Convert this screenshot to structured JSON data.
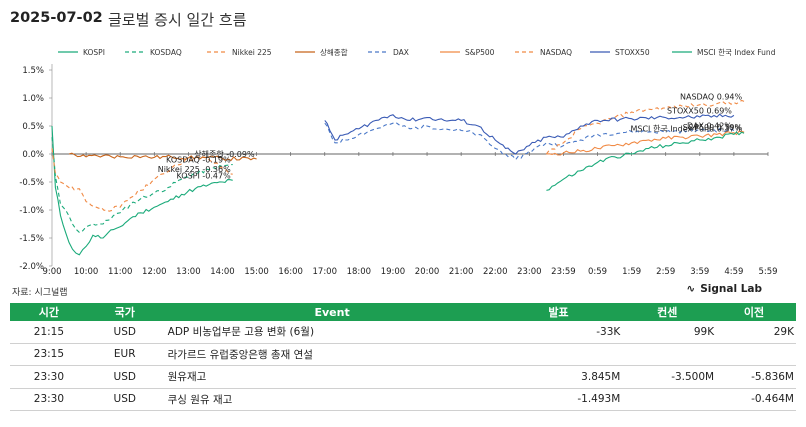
{
  "header": {
    "date": "2025-07-02",
    "title": "글로벌 증시 일간 흐름"
  },
  "source_label": "자료: 시그널랩",
  "brand": "Signal Lab",
  "chart_data": {
    "type": "line",
    "y_unit": "%",
    "ylim": [
      -2.0,
      1.5
    ],
    "y_ticks": [
      "1.5%",
      "1.0%",
      "0.5%",
      "0.0%",
      "-0.5%",
      "-1.0%",
      "-1.5%",
      "-2.0%"
    ],
    "y_tick_values": [
      1.5,
      1.0,
      0.5,
      0.0,
      -0.5,
      -1.0,
      -1.5,
      -2.0
    ],
    "x_ticks": [
      "9:00",
      "10:00",
      "11:00",
      "12:00",
      "13:00",
      "14:00",
      "15:00",
      "16:00",
      "17:00",
      "18:00",
      "19:00",
      "20:00",
      "21:00",
      "22:00",
      "23:00",
      "23:59",
      "0:59",
      "1:59",
      "2:59",
      "3:59",
      "4:59",
      "5:59"
    ],
    "legend_position": "top",
    "series": [
      {
        "name": "KOSPI",
        "color": "#1aaa7a",
        "dash": "solid",
        "points": [
          [
            0,
            0.5
          ],
          [
            0.1,
            -0.6
          ],
          [
            0.25,
            -1.1
          ],
          [
            0.4,
            -1.4
          ],
          [
            0.6,
            -1.7
          ],
          [
            0.8,
            -1.8
          ],
          [
            1.0,
            -1.65
          ],
          [
            1.2,
            -1.45
          ],
          [
            1.5,
            -1.5
          ],
          [
            1.8,
            -1.35
          ],
          [
            2.0,
            -1.3
          ],
          [
            2.3,
            -1.15
          ],
          [
            2.6,
            -1.05
          ],
          [
            3.0,
            -0.95
          ],
          [
            3.4,
            -0.85
          ],
          [
            3.8,
            -0.72
          ],
          [
            4.2,
            -0.62
          ],
          [
            4.6,
            -0.55
          ],
          [
            5.0,
            -0.5
          ],
          [
            5.3,
            -0.47
          ]
        ],
        "label": "KOSPI -0.47%"
      },
      {
        "name": "KOSDAQ",
        "color": "#1aaa7a",
        "dash": "dashed",
        "points": [
          [
            0,
            0.3
          ],
          [
            0.1,
            -0.4
          ],
          [
            0.25,
            -0.9
          ],
          [
            0.4,
            -1.0
          ],
          [
            0.6,
            -1.25
          ],
          [
            0.8,
            -1.4
          ],
          [
            1.0,
            -1.3
          ],
          [
            1.2,
            -1.25
          ],
          [
            1.5,
            -1.25
          ],
          [
            1.8,
            -1.1
          ],
          [
            2.0,
            -1.05
          ],
          [
            2.3,
            -0.9
          ],
          [
            2.6,
            -0.8
          ],
          [
            3.0,
            -0.7
          ],
          [
            3.4,
            -0.6
          ],
          [
            3.8,
            -0.45
          ],
          [
            4.2,
            -0.35
          ],
          [
            4.6,
            -0.28
          ],
          [
            5.0,
            -0.22
          ],
          [
            5.3,
            -0.19
          ]
        ],
        "label": "KOSDAQ -0.19%"
      },
      {
        "name": "Nikkei 225",
        "color": "#f08a45",
        "dash": "dashed",
        "points": [
          [
            0,
            0.1
          ],
          [
            0.1,
            -0.35
          ],
          [
            0.25,
            -0.5
          ],
          [
            0.5,
            -0.6
          ],
          [
            0.8,
            -0.62
          ],
          [
            1.0,
            -0.85
          ],
          [
            1.3,
            -0.95
          ],
          [
            1.6,
            -1.0
          ],
          [
            2.0,
            -0.95
          ],
          [
            2.3,
            -0.78
          ],
          [
            2.6,
            -0.65
          ],
          [
            3.0,
            -0.45
          ],
          [
            3.3,
            -0.35
          ],
          [
            3.6,
            -0.2
          ],
          [
            4.0,
            -0.1
          ],
          [
            4.3,
            -0.05
          ],
          [
            4.6,
            -0.1
          ],
          [
            5.0,
            -0.25
          ],
          [
            5.3,
            -0.36
          ]
        ],
        "label": "Nikkei 225 -0.36%"
      },
      {
        "name": "상해종합",
        "color": "#c8641a",
        "dash": "solid",
        "points": [
          [
            0.5,
            0.0
          ],
          [
            1.0,
            -0.05
          ],
          [
            1.5,
            -0.03
          ],
          [
            2.0,
            -0.05
          ],
          [
            2.5,
            -0.04
          ],
          [
            3.0,
            -0.06
          ],
          [
            3.5,
            -0.05
          ],
          [
            4.0,
            -0.07
          ],
          [
            4.5,
            -0.06
          ],
          [
            5.0,
            -0.08
          ],
          [
            6.0,
            -0.09
          ]
        ],
        "label": "상해종합 -0.09%"
      },
      {
        "name": "DAX",
        "color": "#4a78c8",
        "dash": "dashed",
        "points": [
          [
            8.0,
            0.55
          ],
          [
            8.3,
            0.2
          ],
          [
            8.6,
            0.25
          ],
          [
            9.0,
            0.35
          ],
          [
            9.5,
            0.45
          ],
          [
            10.0,
            0.55
          ],
          [
            10.5,
            0.45
          ],
          [
            11.0,
            0.5
          ],
          [
            11.5,
            0.45
          ],
          [
            12.0,
            0.42
          ],
          [
            12.5,
            0.35
          ],
          [
            13.0,
            0.1
          ],
          [
            13.3,
            0.0
          ],
          [
            13.6,
            -0.1
          ],
          [
            14.0,
            0.05
          ],
          [
            14.5,
            0.2
          ],
          [
            15.0,
            0.15
          ],
          [
            15.5,
            0.25
          ],
          [
            16.0,
            0.35
          ],
          [
            17.0,
            0.4
          ],
          [
            18.0,
            0.4
          ],
          [
            19.0,
            0.42
          ],
          [
            20.0,
            0.42
          ]
        ],
        "label": "DAX 0.42%"
      },
      {
        "name": "S&P500",
        "color": "#f08a45",
        "dash": "solid",
        "points": [
          [
            14.5,
            0.0
          ],
          [
            15.0,
            0.02
          ],
          [
            15.5,
            0.05
          ],
          [
            16.0,
            0.1
          ],
          [
            16.5,
            0.15
          ],
          [
            17.0,
            0.2
          ],
          [
            17.5,
            0.25
          ],
          [
            18.0,
            0.28
          ],
          [
            18.5,
            0.3
          ],
          [
            19.0,
            0.32
          ],
          [
            19.5,
            0.35
          ],
          [
            20.0,
            0.38
          ],
          [
            20.3,
            0.39
          ]
        ],
        "label": "S&P500 0.39%"
      },
      {
        "name": "NASDAQ",
        "color": "#f08a45",
        "dash": "dashed",
        "points": [
          [
            14.5,
            0.0
          ],
          [
            15.0,
            0.2
          ],
          [
            15.5,
            0.45
          ],
          [
            16.0,
            0.55
          ],
          [
            16.5,
            0.65
          ],
          [
            17.0,
            0.75
          ],
          [
            17.5,
            0.8
          ],
          [
            18.0,
            0.82
          ],
          [
            18.5,
            0.85
          ],
          [
            19.0,
            0.88
          ],
          [
            19.5,
            0.9
          ],
          [
            20.0,
            0.92
          ],
          [
            20.3,
            0.94
          ]
        ],
        "label": "NASDAQ 0.94%"
      },
      {
        "name": "STOXX50",
        "color": "#3a5bb5",
        "dash": "solid",
        "points": [
          [
            8.0,
            0.6
          ],
          [
            8.3,
            0.25
          ],
          [
            8.6,
            0.35
          ],
          [
            9.0,
            0.45
          ],
          [
            9.5,
            0.6
          ],
          [
            10.0,
            0.7
          ],
          [
            10.5,
            0.6
          ],
          [
            11.0,
            0.65
          ],
          [
            11.5,
            0.6
          ],
          [
            12.0,
            0.6
          ],
          [
            12.5,
            0.5
          ],
          [
            13.0,
            0.25
          ],
          [
            13.3,
            0.1
          ],
          [
            13.6,
            0.0
          ],
          [
            14.0,
            0.15
          ],
          [
            14.5,
            0.3
          ],
          [
            15.0,
            0.3
          ],
          [
            15.5,
            0.5
          ],
          [
            16.0,
            0.6
          ],
          [
            17.0,
            0.63
          ],
          [
            18.0,
            0.65
          ],
          [
            19.0,
            0.66
          ],
          [
            20.0,
            0.69
          ]
        ],
        "label": "STOXX50 0.69%"
      },
      {
        "name": "MSCI 한국 Index Fund",
        "color": "#1aaa7a",
        "dash": "solid",
        "points": [
          [
            14.5,
            -0.65
          ],
          [
            15.0,
            -0.45
          ],
          [
            15.5,
            -0.3
          ],
          [
            16.0,
            -0.15
          ],
          [
            16.5,
            -0.05
          ],
          [
            17.0,
            0.0
          ],
          [
            17.5,
            0.1
          ],
          [
            18.0,
            0.15
          ],
          [
            18.5,
            0.2
          ],
          [
            19.0,
            0.25
          ],
          [
            19.5,
            0.3
          ],
          [
            20.0,
            0.35
          ],
          [
            20.3,
            0.37
          ]
        ],
        "label": "MSCI 한국 Index Fund 0.37%"
      }
    ]
  },
  "table": {
    "headers": [
      "시간",
      "국가",
      "Event",
      "발표",
      "컨센",
      "이전"
    ],
    "rows": [
      {
        "time": "21:15",
        "country": "USD",
        "event": "ADP 비농업부문 고용 변화 (6월)",
        "actual": "-33K",
        "forecast": "99K",
        "previous": "29K"
      },
      {
        "time": "23:15",
        "country": "EUR",
        "event": "라가르드 유럽중앙은행 총재 연설",
        "actual": "",
        "forecast": "",
        "previous": ""
      },
      {
        "time": "23:30",
        "country": "USD",
        "event": "원유재고",
        "actual": "3.845M",
        "forecast": "-3.500M",
        "previous": "-5.836M"
      },
      {
        "time": "23:30",
        "country": "USD",
        "event": "쿠싱 원유 재고",
        "actual": "-1.493M",
        "forecast": "",
        "previous": "-0.464M"
      }
    ]
  }
}
